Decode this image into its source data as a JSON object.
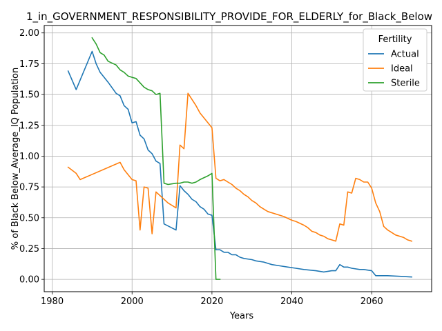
{
  "chart_data": {
    "type": "line",
    "title": "1_in_GOVERNMENT_RESPONSIBILITY_PROVIDE_FOR_ELDERLY_for_Black_Below",
    "xlabel": "Years",
    "ylabel": "% of Black Below_Average_IQ Population",
    "xlim": [
      1978,
      2075
    ],
    "ylim": [
      -0.1,
      2.06
    ],
    "x_ticks": [
      1980,
      2000,
      2020,
      2040,
      2060
    ],
    "x_tick_labels": [
      "1980",
      "2000",
      "2020",
      "2040",
      "2060"
    ],
    "y_ticks": [
      0.0,
      0.25,
      0.5,
      0.75,
      1.0,
      1.25,
      1.5,
      1.75,
      2.0
    ],
    "y_tick_labels": [
      "0.00",
      "0.25",
      "0.50",
      "0.75",
      "1.00",
      "1.25",
      "1.50",
      "1.75",
      "2.00"
    ],
    "grid": true,
    "legend": {
      "title": "Fertility",
      "placement": "upper right"
    },
    "series": [
      {
        "name": "Actual",
        "color": "#1f77b4",
        "points": [
          [
            1984,
            1.69
          ],
          [
            1986,
            1.54
          ],
          [
            1990,
            1.85
          ],
          [
            1991,
            1.75
          ],
          [
            1992,
            1.68
          ],
          [
            1993,
            1.64
          ],
          [
            1994,
            1.6
          ],
          [
            1996,
            1.51
          ],
          [
            1997,
            1.49
          ],
          [
            1998,
            1.41
          ],
          [
            1999,
            1.38
          ],
          [
            2000,
            1.27
          ],
          [
            2001,
            1.28
          ],
          [
            2002,
            1.17
          ],
          [
            2003,
            1.14
          ],
          [
            2004,
            1.05
          ],
          [
            2005,
            1.02
          ],
          [
            2006,
            0.96
          ],
          [
            2007,
            0.94
          ],
          [
            2008,
            0.45
          ],
          [
            2011,
            0.4
          ],
          [
            2012,
            0.76
          ],
          [
            2013,
            0.72
          ],
          [
            2014,
            0.69
          ],
          [
            2015,
            0.65
          ],
          [
            2016,
            0.63
          ],
          [
            2017,
            0.59
          ],
          [
            2018,
            0.57
          ],
          [
            2019,
            0.53
          ],
          [
            2020,
            0.52
          ],
          [
            2021,
            0.24
          ],
          [
            2022,
            0.24
          ],
          [
            2023,
            0.22
          ],
          [
            2024,
            0.22
          ],
          [
            2025,
            0.2
          ],
          [
            2026,
            0.2
          ],
          [
            2027,
            0.18
          ],
          [
            2028,
            0.17
          ],
          [
            2030,
            0.16
          ],
          [
            2031,
            0.15
          ],
          [
            2033,
            0.14
          ],
          [
            2035,
            0.12
          ],
          [
            2037,
            0.11
          ],
          [
            2039,
            0.1
          ],
          [
            2041,
            0.09
          ],
          [
            2043,
            0.08
          ],
          [
            2046,
            0.07
          ],
          [
            2048,
            0.06
          ],
          [
            2050,
            0.07
          ],
          [
            2051,
            0.07
          ],
          [
            2052,
            0.12
          ],
          [
            2053,
            0.1
          ],
          [
            2054,
            0.1
          ],
          [
            2055,
            0.09
          ],
          [
            2057,
            0.08
          ],
          [
            2058,
            0.08
          ],
          [
            2060,
            0.07
          ],
          [
            2061,
            0.03
          ],
          [
            2064,
            0.03
          ],
          [
            2067,
            0.025
          ],
          [
            2070,
            0.02
          ]
        ]
      },
      {
        "name": "Ideal",
        "color": "#ff7f0e",
        "points": [
          [
            1984,
            0.91
          ],
          [
            1986,
            0.86
          ],
          [
            1987,
            0.81
          ],
          [
            1997,
            0.95
          ],
          [
            1998,
            0.89
          ],
          [
            2000,
            0.81
          ],
          [
            2001,
            0.8
          ],
          [
            2002,
            0.4
          ],
          [
            2003,
            0.75
          ],
          [
            2004,
            0.74
          ],
          [
            2005,
            0.37
          ],
          [
            2006,
            0.71
          ],
          [
            2008,
            0.65
          ],
          [
            2009,
            0.62
          ],
          [
            2011,
            0.58
          ],
          [
            2012,
            1.09
          ],
          [
            2013,
            1.06
          ],
          [
            2014,
            1.51
          ],
          [
            2016,
            1.41
          ],
          [
            2017,
            1.35
          ],
          [
            2020,
            1.23
          ],
          [
            2021,
            0.82
          ],
          [
            2022,
            0.8
          ],
          [
            2023,
            0.81
          ],
          [
            2024,
            0.79
          ],
          [
            2025,
            0.77
          ],
          [
            2026,
            0.74
          ],
          [
            2027,
            0.72
          ],
          [
            2028,
            0.69
          ],
          [
            2029,
            0.67
          ],
          [
            2030,
            0.64
          ],
          [
            2031,
            0.62
          ],
          [
            2032,
            0.59
          ],
          [
            2033,
            0.57
          ],
          [
            2034,
            0.55
          ],
          [
            2036,
            0.53
          ],
          [
            2038,
            0.51
          ],
          [
            2040,
            0.48
          ],
          [
            2041,
            0.47
          ],
          [
            2043,
            0.44
          ],
          [
            2044,
            0.42
          ],
          [
            2045,
            0.39
          ],
          [
            2046,
            0.38
          ],
          [
            2047,
            0.36
          ],
          [
            2048,
            0.35
          ],
          [
            2049,
            0.33
          ],
          [
            2050,
            0.32
          ],
          [
            2051,
            0.31
          ],
          [
            2052,
            0.45
          ],
          [
            2053,
            0.44
          ],
          [
            2054,
            0.71
          ],
          [
            2055,
            0.7
          ],
          [
            2056,
            0.82
          ],
          [
            2057,
            0.81
          ],
          [
            2058,
            0.79
          ],
          [
            2059,
            0.79
          ],
          [
            2060,
            0.74
          ],
          [
            2061,
            0.62
          ],
          [
            2062,
            0.55
          ],
          [
            2063,
            0.43
          ],
          [
            2064,
            0.4
          ],
          [
            2065,
            0.38
          ],
          [
            2066,
            0.36
          ],
          [
            2068,
            0.34
          ],
          [
            2069,
            0.32
          ],
          [
            2070,
            0.31
          ]
        ]
      },
      {
        "name": "Sterile",
        "color": "#2ca02c",
        "points": [
          [
            1990,
            1.96
          ],
          [
            1991,
            1.91
          ],
          [
            1992,
            1.84
          ],
          [
            1993,
            1.82
          ],
          [
            1994,
            1.77
          ],
          [
            1996,
            1.74
          ],
          [
            1997,
            1.7
          ],
          [
            1998,
            1.68
          ],
          [
            1999,
            1.65
          ],
          [
            2000,
            1.64
          ],
          [
            2001,
            1.63
          ],
          [
            2003,
            1.56
          ],
          [
            2004,
            1.54
          ],
          [
            2005,
            1.53
          ],
          [
            2006,
            1.5
          ],
          [
            2007,
            1.51
          ],
          [
            2008,
            0.78
          ],
          [
            2009,
            0.77
          ],
          [
            2011,
            0.78
          ],
          [
            2012,
            0.78
          ],
          [
            2013,
            0.79
          ],
          [
            2014,
            0.79
          ],
          [
            2015,
            0.78
          ],
          [
            2016,
            0.79
          ],
          [
            2017,
            0.81
          ],
          [
            2019,
            0.84
          ],
          [
            2020,
            0.86
          ],
          [
            2021,
            0.0
          ],
          [
            2022,
            0.0
          ]
        ]
      }
    ]
  }
}
